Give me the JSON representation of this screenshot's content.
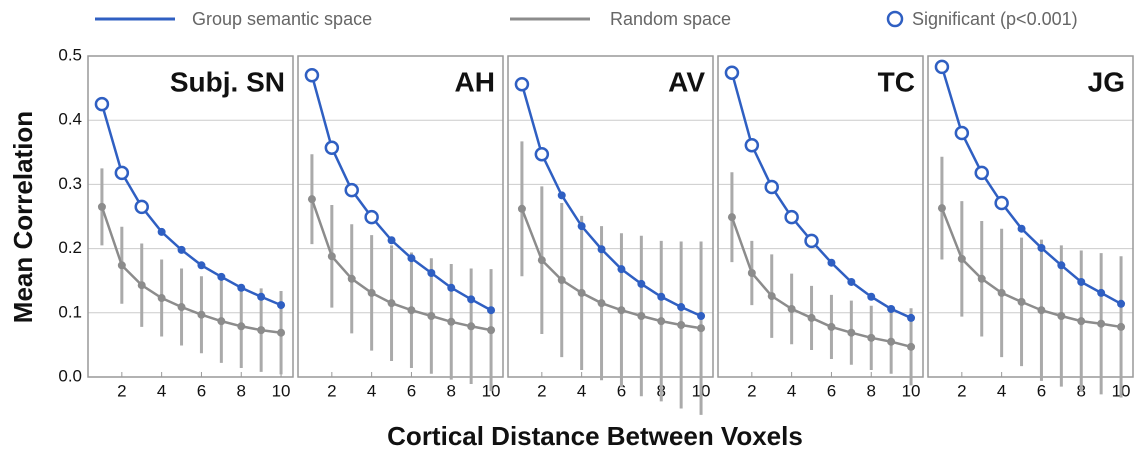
{
  "xlabel": "Cortical Distance Between Voxels",
  "ylabel": "Mean Correlation",
  "significant_label": "Significant (p<0.001)",
  "chart_data": [
    {
      "type": "line",
      "title": "Subj. SN",
      "x": [
        1,
        2,
        3,
        4,
        5,
        6,
        7,
        8,
        9,
        10
      ],
      "xlim": [
        0.3,
        10.6
      ],
      "xticks": [
        2,
        4,
        6,
        8,
        10
      ],
      "ylim": [
        0,
        0.5
      ],
      "yticks": [
        {
          "value": 0,
          "label": "0.0"
        },
        0.1,
        0.2,
        0.3,
        0.4,
        0.5
      ],
      "grid": true,
      "significant": [
        true,
        true,
        true,
        false,
        false,
        false,
        false,
        false,
        false,
        false
      ],
      "series": [
        {
          "name": "Group semantic space",
          "color": "#2f5fc2",
          "values": [
            0.425,
            0.318,
            0.265,
            0.226,
            0.198,
            0.174,
            0.156,
            0.139,
            0.125,
            0.112
          ]
        },
        {
          "name": "Random space",
          "color": "#8c8c8c",
          "values": [
            0.265,
            0.174,
            0.143,
            0.123,
            0.109,
            0.097,
            0.087,
            0.079,
            0.073,
            0.069
          ],
          "errors": [
            0.06,
            0.06,
            0.065,
            0.06,
            0.06,
            0.06,
            0.065,
            0.065,
            0.065,
            0.065
          ]
        }
      ]
    },
    {
      "type": "line",
      "title": "AH",
      "x": [
        1,
        2,
        3,
        4,
        5,
        6,
        7,
        8,
        9,
        10
      ],
      "xlim": [
        0.3,
        10.6
      ],
      "xticks": [
        2,
        4,
        6,
        8,
        10
      ],
      "ylim": [
        0,
        0.5
      ],
      "yticks": [
        {
          "value": 0,
          "label": "0.0"
        },
        0.1,
        0.2,
        0.3,
        0.4,
        0.5
      ],
      "grid": true,
      "significant": [
        true,
        true,
        true,
        true,
        false,
        false,
        false,
        false,
        false,
        false
      ],
      "series": [
        {
          "name": "Group semantic space",
          "color": "#2f5fc2",
          "values": [
            0.47,
            0.357,
            0.291,
            0.249,
            0.213,
            0.185,
            0.162,
            0.139,
            0.121,
            0.104
          ]
        },
        {
          "name": "Random space",
          "color": "#8c8c8c",
          "values": [
            0.277,
            0.188,
            0.153,
            0.131,
            0.115,
            0.104,
            0.095,
            0.086,
            0.079,
            0.073
          ],
          "errors": [
            0.07,
            0.08,
            0.085,
            0.09,
            0.09,
            0.09,
            0.09,
            0.09,
            0.09,
            0.095
          ]
        }
      ]
    },
    {
      "type": "line",
      "title": "AV",
      "x": [
        1,
        2,
        3,
        4,
        5,
        6,
        7,
        8,
        9,
        10
      ],
      "xlim": [
        0.3,
        10.6
      ],
      "xticks": [
        2,
        4,
        6,
        8,
        10
      ],
      "ylim": [
        0,
        0.5
      ],
      "yticks": [
        {
          "value": 0,
          "label": "0.0"
        },
        0.1,
        0.2,
        0.3,
        0.4,
        0.5
      ],
      "grid": true,
      "significant": [
        true,
        true,
        false,
        false,
        false,
        false,
        false,
        false,
        false,
        false
      ],
      "series": [
        {
          "name": "Group semantic space",
          "color": "#2f5fc2",
          "values": [
            0.456,
            0.347,
            0.283,
            0.235,
            0.199,
            0.168,
            0.145,
            0.125,
            0.109,
            0.095
          ]
        },
        {
          "name": "Random space",
          "color": "#8c8c8c",
          "values": [
            0.262,
            0.182,
            0.151,
            0.131,
            0.115,
            0.104,
            0.095,
            0.087,
            0.081,
            0.076
          ],
          "errors": [
            0.105,
            0.115,
            0.12,
            0.12,
            0.12,
            0.12,
            0.125,
            0.125,
            0.13,
            0.135
          ]
        }
      ]
    },
    {
      "type": "line",
      "title": "TC",
      "x": [
        1,
        2,
        3,
        4,
        5,
        6,
        7,
        8,
        9,
        10
      ],
      "xlim": [
        0.3,
        10.6
      ],
      "xticks": [
        2,
        4,
        6,
        8,
        10
      ],
      "ylim": [
        0,
        0.5
      ],
      "yticks": [
        {
          "value": 0,
          "label": "0.0"
        },
        0.1,
        0.2,
        0.3,
        0.4,
        0.5
      ],
      "grid": true,
      "significant": [
        true,
        true,
        true,
        true,
        true,
        false,
        false,
        false,
        false,
        false
      ],
      "series": [
        {
          "name": "Group semantic space",
          "color": "#2f5fc2",
          "values": [
            0.474,
            0.361,
            0.296,
            0.249,
            0.212,
            0.178,
            0.148,
            0.125,
            0.106,
            0.092
          ]
        },
        {
          "name": "Random space",
          "color": "#8c8c8c",
          "values": [
            0.249,
            0.162,
            0.126,
            0.106,
            0.092,
            0.078,
            0.069,
            0.061,
            0.055,
            0.047
          ],
          "errors": [
            0.07,
            0.05,
            0.065,
            0.055,
            0.05,
            0.05,
            0.05,
            0.05,
            0.05,
            0.06
          ]
        }
      ]
    },
    {
      "type": "line",
      "title": "JG",
      "x": [
        1,
        2,
        3,
        4,
        5,
        6,
        7,
        8,
        9,
        10
      ],
      "xlim": [
        0.3,
        10.6
      ],
      "xticks": [
        2,
        4,
        6,
        8,
        10
      ],
      "ylim": [
        0,
        0.5
      ],
      "yticks": [
        {
          "value": 0,
          "label": "0.0"
        },
        0.1,
        0.2,
        0.3,
        0.4,
        0.5
      ],
      "grid": true,
      "significant": [
        true,
        true,
        true,
        true,
        false,
        false,
        false,
        false,
        false,
        false
      ],
      "series": [
        {
          "name": "Group semantic space",
          "color": "#2f5fc2",
          "values": [
            0.483,
            0.38,
            0.318,
            0.271,
            0.231,
            0.201,
            0.174,
            0.148,
            0.131,
            0.114
          ]
        },
        {
          "name": "Random space",
          "color": "#8c8c8c",
          "values": [
            0.263,
            0.184,
            0.153,
            0.131,
            0.117,
            0.104,
            0.095,
            0.087,
            0.083,
            0.078
          ],
          "errors": [
            0.08,
            0.09,
            0.09,
            0.1,
            0.1,
            0.11,
            0.11,
            0.11,
            0.11,
            0.11
          ]
        }
      ]
    }
  ]
}
